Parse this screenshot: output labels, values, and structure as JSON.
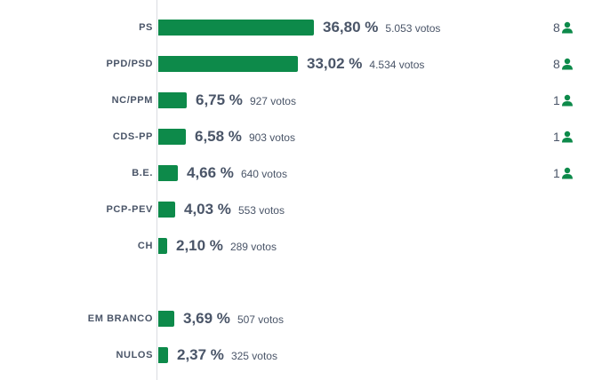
{
  "colors": {
    "bar": "#0d8a4a",
    "text": "#4a5568",
    "seat_icon": "#0d8a4a"
  },
  "chart_data": {
    "type": "bar",
    "orientation": "horizontal",
    "percent_unit": "%",
    "votes_unit": "votos",
    "rows": [
      {
        "party": "PS",
        "percent": 36.8,
        "percent_label": "36,80",
        "votes_label": "5.053",
        "seats": "8"
      },
      {
        "party": "PPD/PSD",
        "percent": 33.02,
        "percent_label": "33,02",
        "votes_label": "4.534",
        "seats": "8"
      },
      {
        "party": "NC/PPM",
        "percent": 6.75,
        "percent_label": "6,75",
        "votes_label": "927",
        "seats": "1"
      },
      {
        "party": "CDS-PP",
        "percent": 6.58,
        "percent_label": "6,58",
        "votes_label": "903",
        "seats": "1"
      },
      {
        "party": "B.E.",
        "percent": 4.66,
        "percent_label": "4,66",
        "votes_label": "640",
        "seats": "1"
      },
      {
        "party": "PCP-PEV",
        "percent": 4.03,
        "percent_label": "4,03",
        "votes_label": "553",
        "seats": ""
      },
      {
        "party": "CH",
        "percent": 2.1,
        "percent_label": "2,10",
        "votes_label": "289",
        "seats": ""
      },
      {
        "party": "EM BRANCO",
        "percent": 3.69,
        "percent_label": "3,69",
        "votes_label": "507",
        "seats": ""
      },
      {
        "party": "NULOS",
        "percent": 2.37,
        "percent_label": "2,37",
        "votes_label": "325",
        "seats": ""
      }
    ]
  }
}
